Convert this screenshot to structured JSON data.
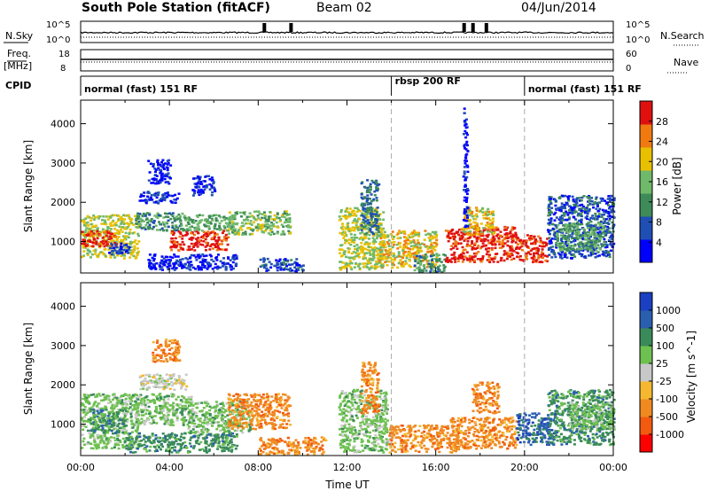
{
  "header": {
    "station": "South Pole Station (fitACF)",
    "beam": "Beam 02",
    "date": "04/Jun/2014"
  },
  "top_panels": {
    "nsky_label": "N.Sky",
    "nsearch_label": "N.Search",
    "nsky_ticks": [
      "10^5",
      "10^0"
    ],
    "nsky_ticks_right": [
      "10^5",
      "10^0"
    ],
    "freq_label_line1": "Freq.",
    "freq_label_line2": "[MHz]",
    "freq_ticks": [
      "18",
      "8"
    ],
    "nave_label": "Nave",
    "nave_ticks": [
      "60",
      "0"
    ],
    "cpid_label": "CPID",
    "cpid_segments": [
      {
        "label": "normal (fast) 151 RF",
        "start_hour": 0,
        "end_hour": 14
      },
      {
        "label": "rbsp 200 RF",
        "start_hour": 14,
        "end_hour": 20
      },
      {
        "label": "normal (fast) 151 RF",
        "start_hour": 20,
        "end_hour": 24
      }
    ]
  },
  "chart_data": [
    {
      "type": "heatmap",
      "panel": "power",
      "ylabel": "Slant Range [km]",
      "xlabel": "",
      "xlim": [
        0,
        24
      ],
      "ylim": [
        200,
        4600
      ],
      "yticks": [
        1000,
        2000,
        3000,
        4000
      ],
      "colorbar_label": "Power [dB]",
      "colorbar_ticks": [
        4,
        8,
        12,
        16,
        20,
        24,
        28
      ],
      "colorbar_range": [
        0,
        32
      ],
      "colors": [
        "#0000ff",
        "#1f4fb4",
        "#3e8a58",
        "#6fb96a",
        "#e8c000",
        "#f07a10",
        "#e01010"
      ],
      "mode_boundaries_hours": [
        14,
        20
      ],
      "patches": [
        {
          "x": [
            0.0,
            2.6
          ],
          "y": [
            600,
            1700
          ],
          "value": 18
        },
        {
          "x": [
            0.0,
            1.6
          ],
          "y": [
            900,
            1300
          ],
          "value": 28
        },
        {
          "x": [
            1.2,
            2.2
          ],
          "y": [
            700,
            1000
          ],
          "value": 6
        },
        {
          "x": [
            2.4,
            4.6
          ],
          "y": [
            1300,
            1750
          ],
          "value": 12
        },
        {
          "x": [
            2.6,
            4.4
          ],
          "y": [
            2000,
            2300
          ],
          "value": 6
        },
        {
          "x": [
            3.0,
            4.0
          ],
          "y": [
            2500,
            3100
          ],
          "value": 4
        },
        {
          "x": [
            4.0,
            6.6
          ],
          "y": [
            800,
            1300
          ],
          "value": 28
        },
        {
          "x": [
            4.6,
            7.0
          ],
          "y": [
            1300,
            1700
          ],
          "value": 14
        },
        {
          "x": [
            6.6,
            9.4
          ],
          "y": [
            1200,
            1800
          ],
          "value": 16
        },
        {
          "x": [
            5.0,
            6.0
          ],
          "y": [
            2200,
            2700
          ],
          "value": 6
        },
        {
          "x": [
            3.0,
            7.0
          ],
          "y": [
            300,
            700
          ],
          "value": 5
        },
        {
          "x": [
            8.0,
            10.0
          ],
          "y": [
            250,
            600
          ],
          "value": 8
        },
        {
          "x": [
            11.6,
            13.6
          ],
          "y": [
            300,
            1900
          ],
          "value": 18
        },
        {
          "x": [
            12.6,
            13.4
          ],
          "y": [
            1200,
            2600
          ],
          "value": 10
        },
        {
          "x": [
            13.4,
            16.0
          ],
          "y": [
            350,
            1300
          ],
          "value": 20
        },
        {
          "x": [
            15.0,
            16.4
          ],
          "y": [
            250,
            700
          ],
          "value": 12
        },
        {
          "x": [
            16.4,
            19.6
          ],
          "y": [
            500,
            1400
          ],
          "value": 28
        },
        {
          "x": [
            17.2,
            18.6
          ],
          "y": [
            1200,
            1900
          ],
          "value": 20
        },
        {
          "x": [
            19.6,
            21.0
          ],
          "y": [
            500,
            1200
          ],
          "value": 28
        },
        {
          "x": [
            21.0,
            24.0
          ],
          "y": [
            600,
            2200
          ],
          "value": 8
        },
        {
          "x": [
            21.4,
            23.6
          ],
          "y": [
            800,
            1500
          ],
          "value": 14
        },
        {
          "x": [
            17.2,
            17.4
          ],
          "y": [
            1400,
            4500
          ],
          "value": 4
        }
      ]
    },
    {
      "type": "heatmap",
      "panel": "velocity",
      "ylabel": "Slant Range [km]",
      "xlabel": "Time UT",
      "xlim": [
        0,
        24
      ],
      "ylim": [
        200,
        4600
      ],
      "yticks": [
        1000,
        2000,
        3000,
        4000
      ],
      "xticks": [
        "00:00",
        "04:00",
        "08:00",
        "12:00",
        "16:00",
        "20:00",
        "00:00"
      ],
      "colorbar_label": "Velocity [m s^-1]",
      "colorbar_ticks": [
        "1000",
        "500",
        "100",
        "25",
        "-25",
        "-100",
        "-500",
        "-1000"
      ],
      "colors": [
        "#ff0000",
        "#f25a10",
        "#f08a20",
        "#f5b830",
        "#c8c8c8",
        "#6ec050",
        "#3a8a5a",
        "#2a5fb0",
        "#1a3fc0"
      ],
      "mode_boundaries_hours": [
        14,
        20
      ],
      "patches": [
        {
          "x": [
            0.0,
            2.6
          ],
          "y": [
            400,
            1800
          ],
          "value": 100
        },
        {
          "x": [
            0.4,
            2.0
          ],
          "y": [
            800,
            1400
          ],
          "value": 500
        },
        {
          "x": [
            2.4,
            5.0
          ],
          "y": [
            1000,
            1800
          ],
          "value": 100
        },
        {
          "x": [
            2.6,
            4.8
          ],
          "y": [
            1900,
            2300
          ],
          "value": 25
        },
        {
          "x": [
            3.2,
            4.4
          ],
          "y": [
            2600,
            3200
          ],
          "value": -100
        },
        {
          "x": [
            4.8,
            7.6
          ],
          "y": [
            800,
            1600
          ],
          "value": 100
        },
        {
          "x": [
            6.6,
            9.4
          ],
          "y": [
            900,
            1800
          ],
          "value": -100
        },
        {
          "x": [
            2.0,
            7.0
          ],
          "y": [
            300,
            800
          ],
          "value": 500
        },
        {
          "x": [
            8.0,
            11.0
          ],
          "y": [
            250,
            700
          ],
          "value": -100
        },
        {
          "x": [
            11.6,
            13.8
          ],
          "y": [
            300,
            1900
          ],
          "value": 100
        },
        {
          "x": [
            12.6,
            13.4
          ],
          "y": [
            1300,
            2600
          ],
          "value": -100
        },
        {
          "x": [
            13.8,
            17.0
          ],
          "y": [
            300,
            1000
          ],
          "value": -100
        },
        {
          "x": [
            16.6,
            19.6
          ],
          "y": [
            400,
            1200
          ],
          "value": -100
        },
        {
          "x": [
            17.6,
            18.8
          ],
          "y": [
            1300,
            2100
          ],
          "value": -100
        },
        {
          "x": [
            19.6,
            21.4
          ],
          "y": [
            500,
            1300
          ],
          "value": 1000
        },
        {
          "x": [
            21.0,
            24.0
          ],
          "y": [
            500,
            1900
          ],
          "value": 500
        },
        {
          "x": [
            22.0,
            24.0
          ],
          "y": [
            900,
            1600
          ],
          "value": 100
        }
      ]
    }
  ],
  "series_top": {
    "nsky_bursts_hours": [
      8.2,
      9.4,
      17.2,
      17.6,
      18.2
    ]
  }
}
